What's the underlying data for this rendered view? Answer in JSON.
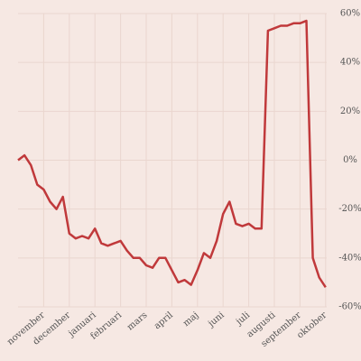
{
  "chart_data": {
    "type": "line",
    "categories": [
      null,
      null,
      null,
      null,
      "november",
      null,
      null,
      null,
      "december",
      null,
      null,
      null,
      "januari",
      null,
      null,
      null,
      "februari",
      null,
      null,
      null,
      "mars",
      null,
      null,
      null,
      "april",
      null,
      null,
      null,
      "maj",
      null,
      null,
      null,
      "juni",
      null,
      null,
      null,
      "juli",
      null,
      null,
      null,
      "augusti",
      null,
      null,
      null,
      "september",
      null,
      null,
      null,
      "oktober"
    ],
    "values": [
      0,
      2,
      -2,
      -10,
      -12,
      -17,
      -20,
      -15,
      -30,
      -32,
      -31,
      -32,
      -28,
      -34,
      -35,
      -34,
      -33,
      -37,
      -40,
      -40,
      -43,
      -44,
      -40,
      -40,
      -45,
      -50,
      -49,
      -51,
      -45,
      -38,
      -40,
      -33,
      -22,
      -17,
      -26,
      -27,
      -26,
      -28,
      -28,
      53,
      54,
      55,
      55,
      56,
      56,
      57,
      -40,
      -48,
      -52
    ],
    "color": "#c0393b",
    "ylim": [
      -60,
      60
    ],
    "yticks": [
      {
        "value": 60,
        "label": "60%"
      },
      {
        "value": 40,
        "label": "40%"
      },
      {
        "value": 20,
        "label": "20%"
      },
      {
        "value": 0,
        "label": "0%"
      },
      {
        "value": -20,
        "label": "-20%"
      },
      {
        "value": -40,
        "label": "-40%"
      },
      {
        "value": -60,
        "label": "-60%"
      }
    ],
    "grid": true
  }
}
